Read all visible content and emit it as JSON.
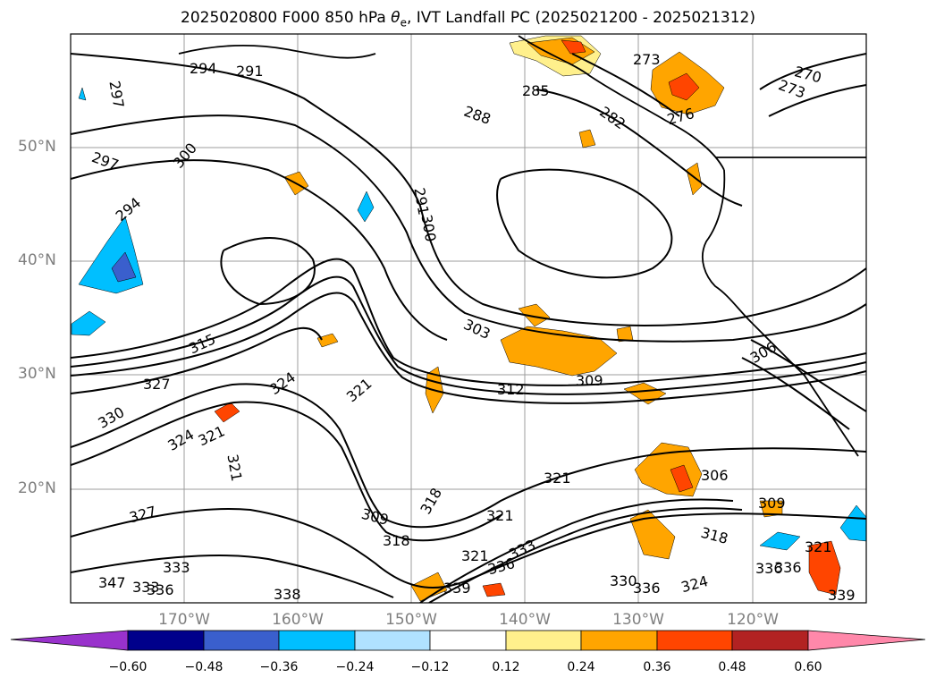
{
  "title_prefix": "2025020800 F000 850 hPa ",
  "title_var": "θ",
  "title_sub": "e",
  "title_suffix": ", IVT Landfall PC (2025021200 - 2025021312)",
  "map": {
    "lat_labels": [
      "50°N",
      "40°N",
      "30°N",
      "20°N"
    ],
    "lon_labels": [
      "170°W",
      "160°W",
      "150°W",
      "140°W",
      "130°W",
      "120°W"
    ],
    "contour_labels": [
      "294",
      "291",
      "297",
      "285",
      "273",
      "270",
      "273",
      "276",
      "282",
      "288",
      "297",
      "300",
      "294",
      "291",
      "300",
      "303",
      "312",
      "309",
      "306",
      "315",
      "327",
      "324",
      "321",
      "330",
      "324",
      "321",
      "321",
      "327",
      "321",
      "306",
      "309",
      "318",
      "309",
      "318",
      "321",
      "321",
      "333",
      "336",
      "318",
      "321",
      "336",
      "330",
      "336",
      "324",
      "339",
      "339",
      "333",
      "336",
      "347",
      "333",
      "336",
      "338"
    ]
  },
  "colorbar": {
    "ticks": [
      "−0.60",
      "−0.48",
      "−0.36",
      "−0.24",
      "−0.12",
      "0.12",
      "0.24",
      "0.36",
      "0.48",
      "0.60"
    ],
    "colors": [
      "#9932cc",
      "#00008b",
      "#3a5fcd",
      "#00bfff",
      "#b0e2ff",
      "#ffffff",
      "#fff08c",
      "#ffa500",
      "#ff4500",
      "#b22222",
      "#ff88aa"
    ]
  }
}
